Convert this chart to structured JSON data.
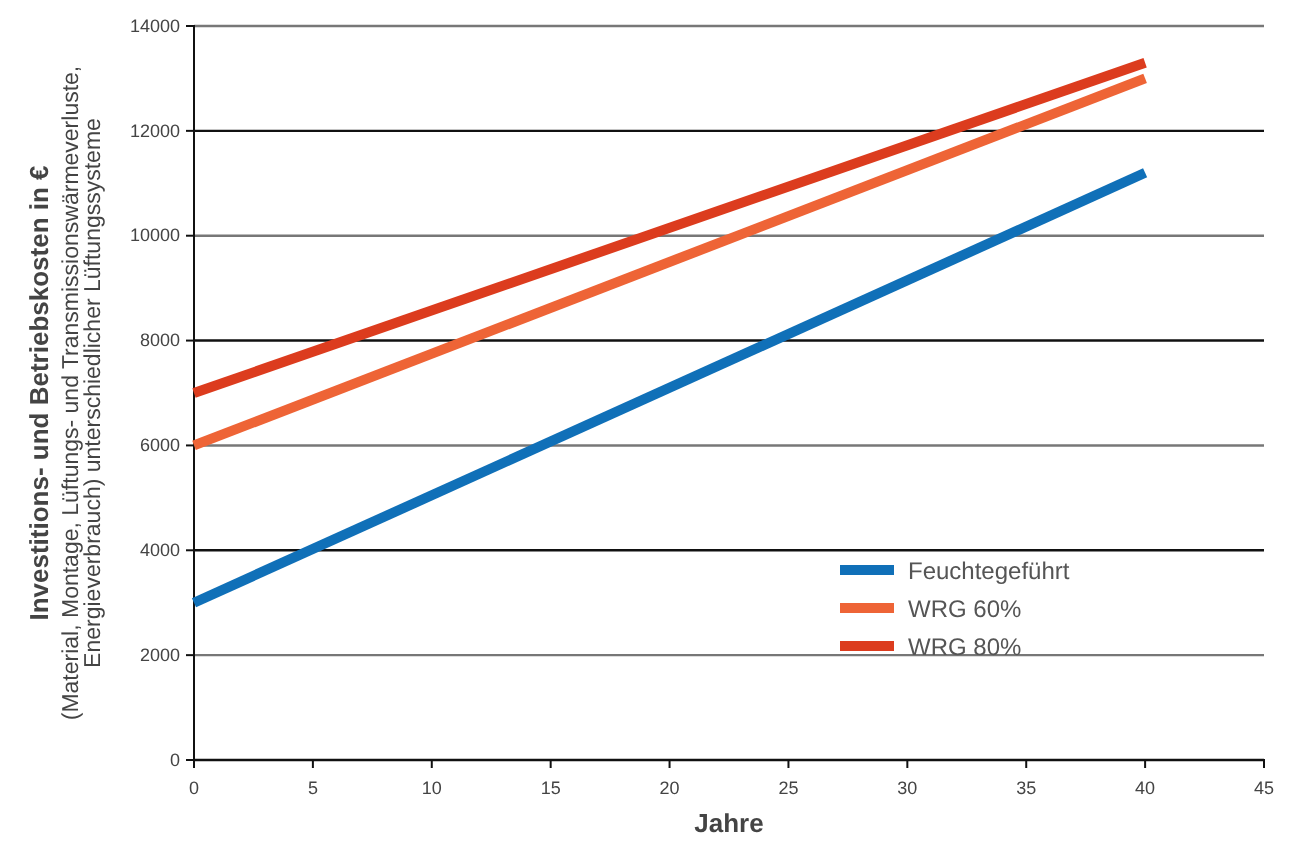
{
  "chart_data": {
    "type": "line",
    "xlabel": "Jahre",
    "ylabel": "Investitions- und Betriebskosten in €\n(Material, Montage, Lüftungs- und Transmissionswärmeverluste,\nEnergieverbrauch) unterschiedlicher Lüftungssysteme",
    "x": [
      0,
      40
    ],
    "series": [
      {
        "name": "Feuchtegeführt",
        "color": "#1070b8",
        "values": [
          3000,
          11200
        ]
      },
      {
        "name": "WRG 60%",
        "color": "#ee6436",
        "values": [
          6000,
          13000
        ]
      },
      {
        "name": "WRG 80%",
        "color": "#dc3c1e",
        "values": [
          7000,
          13300
        ]
      }
    ],
    "xlim": [
      0,
      45
    ],
    "xticks": [
      0,
      5,
      10,
      15,
      20,
      25,
      30,
      35,
      40,
      45
    ],
    "ylim": [
      0,
      14000
    ],
    "yticks": [
      0,
      2000,
      4000,
      6000,
      8000,
      10000,
      12000,
      14000
    ],
    "grid": "y",
    "legend": "bottom right",
    "marker": "none",
    "line_style": "solid"
  }
}
